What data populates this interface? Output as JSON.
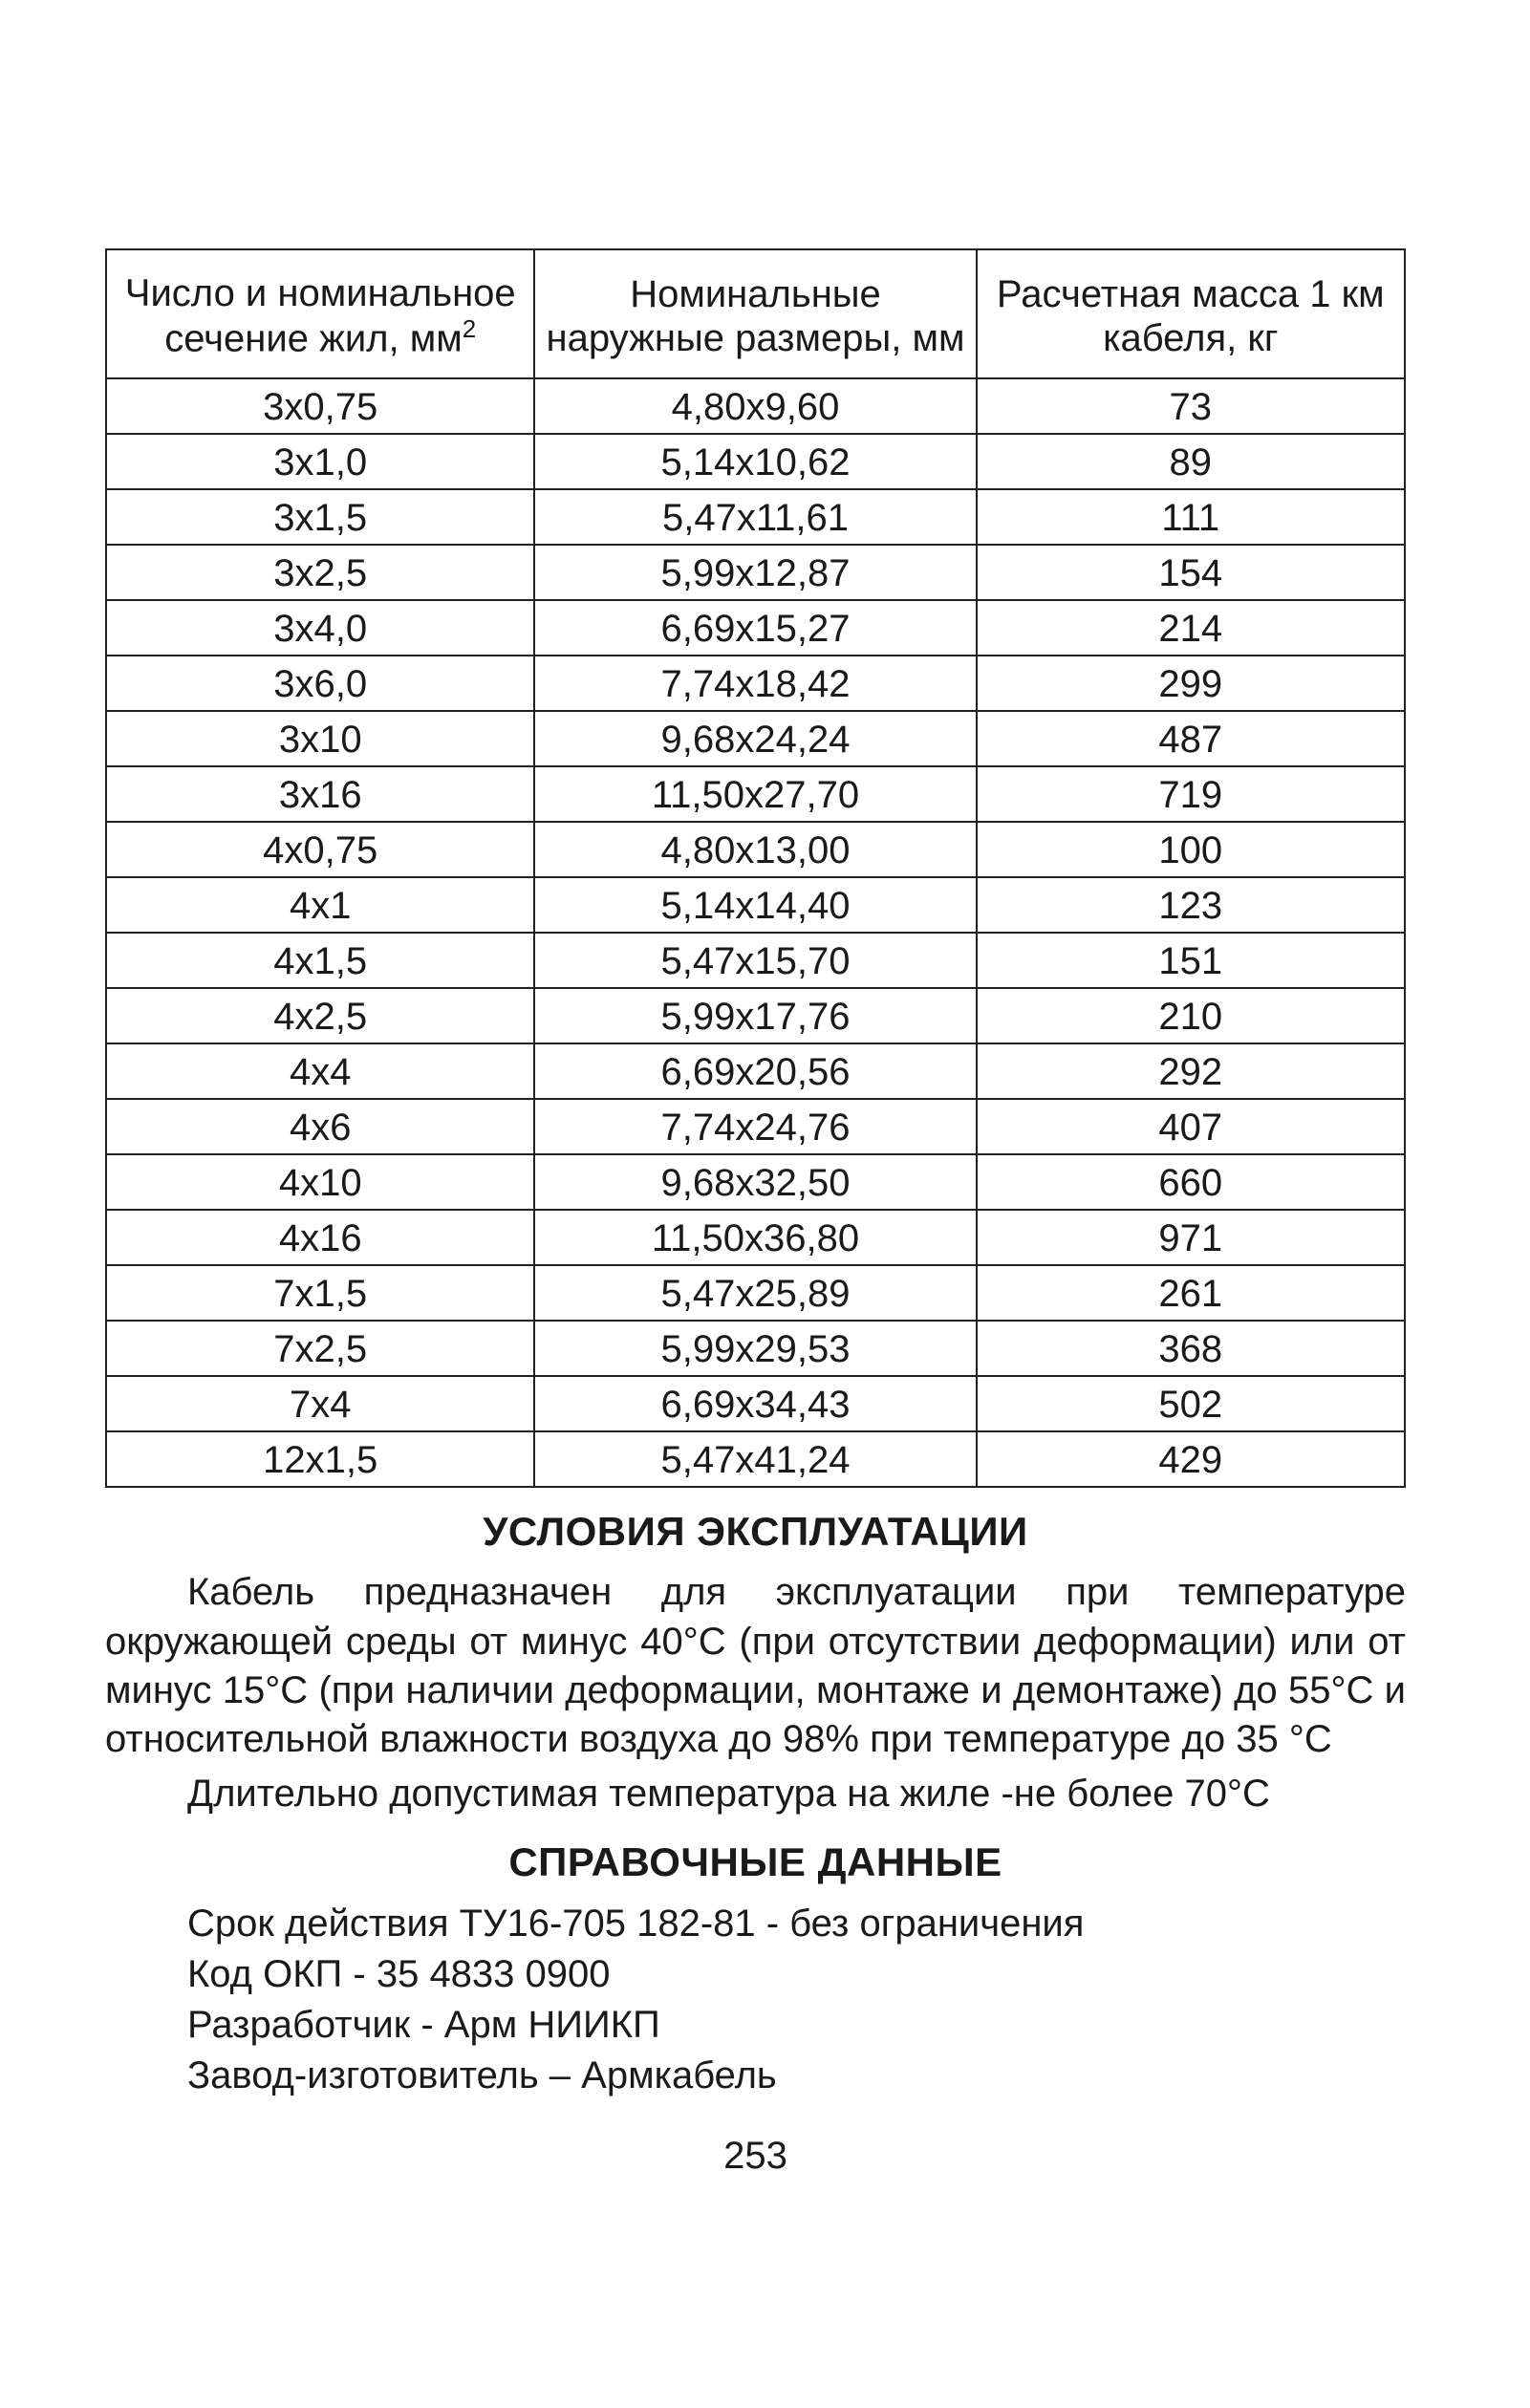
{
  "table": {
    "columns": [
      {
        "label_html": "Число и номинальное сечение жил, мм",
        "sup": "2",
        "width_pct": 33
      },
      {
        "label_html": "Номинальные наружные размеры, мм",
        "sup": "",
        "width_pct": 34
      },
      {
        "label_html": "Расчетная масса 1 км кабеля, кг",
        "sup": "",
        "width_pct": 33
      }
    ],
    "rows": [
      [
        "3x0,75",
        "4,80x9,60",
        "73"
      ],
      [
        "3x1,0",
        "5,14x10,62",
        "89"
      ],
      [
        "3x1,5",
        "5,47x11,61",
        "111"
      ],
      [
        "3x2,5",
        "5,99x12,87",
        "154"
      ],
      [
        "3x4,0",
        "6,69x15,27",
        "214"
      ],
      [
        "3x6,0",
        "7,74x18,42",
        "299"
      ],
      [
        "3x10",
        "9,68x24,24",
        "487"
      ],
      [
        "3x16",
        "11,50x27,70",
        "719"
      ],
      [
        "4x0,75",
        "4,80x13,00",
        "100"
      ],
      [
        "4x1",
        "5,14x14,40",
        "123"
      ],
      [
        "4x1,5",
        "5,47x15,70",
        "151"
      ],
      [
        "4x2,5",
        "5,99x17,76",
        "210"
      ],
      [
        "4x4",
        "6,69x20,56",
        "292"
      ],
      [
        "4x6",
        "7,74x24,76",
        "407"
      ],
      [
        "4x10",
        "9,68x32,50",
        "660"
      ],
      [
        "4x16",
        "11,50x36,80",
        "971"
      ],
      [
        "7x1,5",
        "5,47x25,89",
        "261"
      ],
      [
        "7x2,5",
        "5,99x29,53",
        "368"
      ],
      [
        "7x4",
        "6,69x34,43",
        "502"
      ],
      [
        "12x1,5",
        "5,47x41,24",
        "429"
      ]
    ],
    "border_color": "#222222",
    "font_size_pt": 30,
    "header_font_size_pt": 30
  },
  "sections": {
    "usage_title": "УСЛОВИЯ ЭКСПЛУАТАЦИИ",
    "usage_para1": "Кабель предназначен для эксплуатации при температуре окружающей среды от минус 40°С (при отсутствии деформации) или от минус 15°С (при наличии деформации, монтаже и демонтаже) до 55°С и относительной влажности воздуха до 98% при температуре до 35 °С",
    "usage_para2": "Длительно допустимая температура на жиле -не более 70°С",
    "reference_title": "СПРАВОЧНЫЕ ДАННЫЕ",
    "reference_lines": [
      "Срок действия ТУ16-705 182-81 - без ограничения",
      "Код ОКП - 35 4833 0900",
      "Разработчик - Арм НИИКП",
      "Завод-изготовитель – Армкабель"
    ]
  },
  "page_number": "253",
  "style": {
    "background": "#ffffff",
    "text_color": "#1a1a1a",
    "font_family": "Arial"
  }
}
